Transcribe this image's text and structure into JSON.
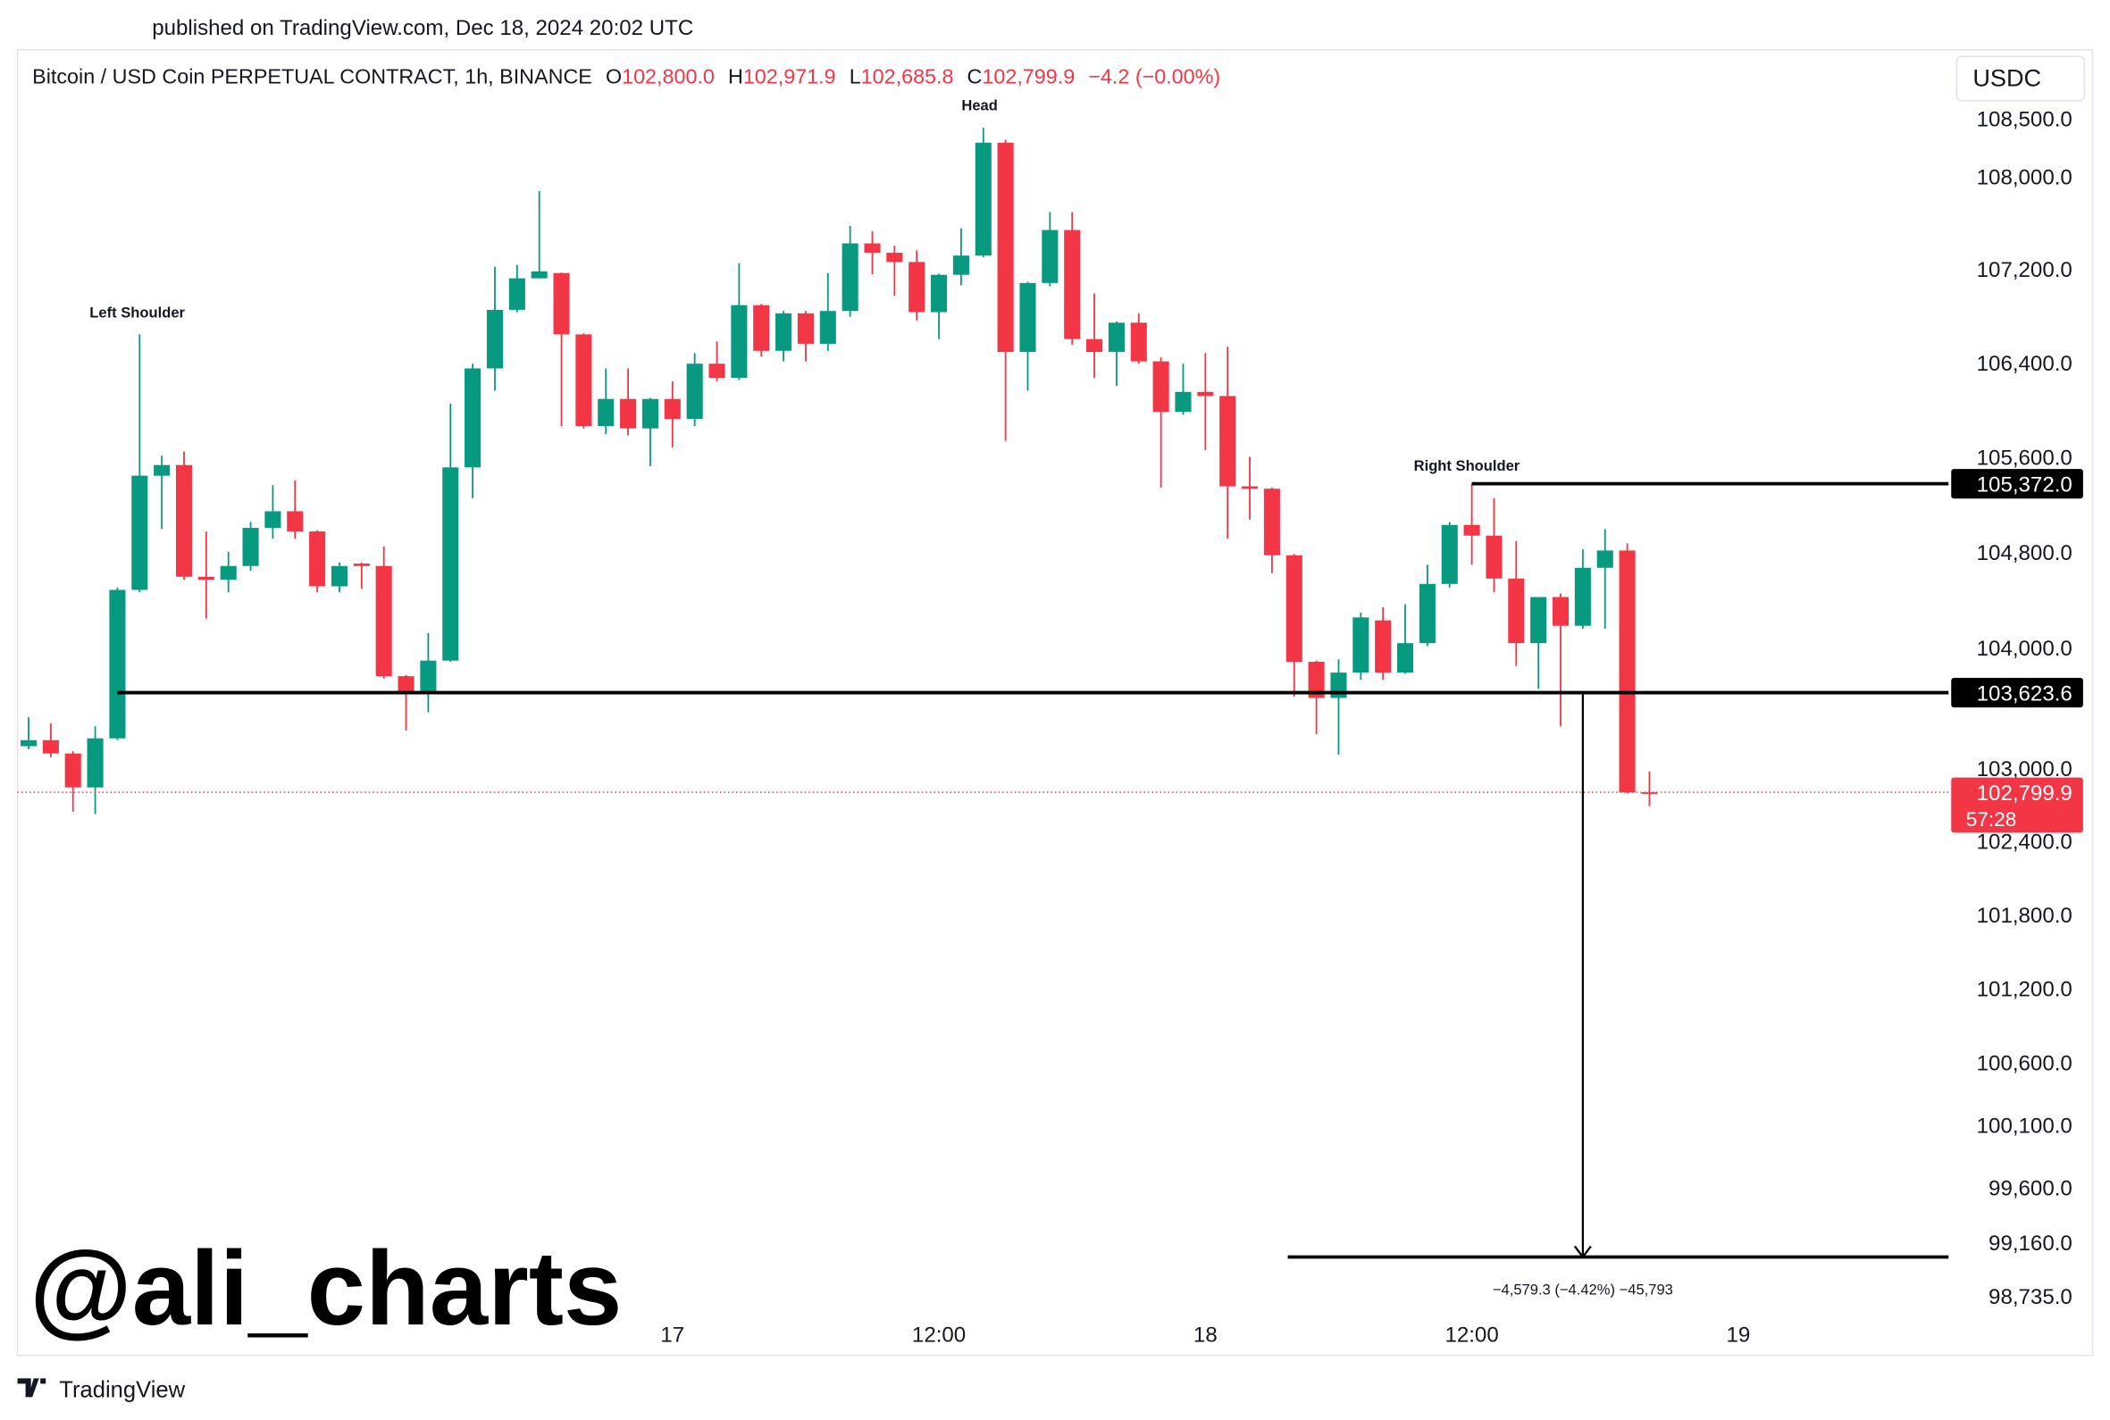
{
  "chart_data": {
    "type": "candlestick",
    "published": "published on TradingView.com, Dec 18, 2024 20:02 UTC",
    "title": "Bitcoin / USD Coin PERPETUAL CONTRACT, 1h, BINANCE",
    "ohlc_legend": [
      {
        "prefix": "O",
        "value": 102800.0,
        "label": "102,800.0"
      },
      {
        "prefix": "H",
        "value": 102971.9,
        "label": "102,971.9"
      },
      {
        "prefix": "L",
        "value": 102685.8,
        "label": "102,685.8"
      },
      {
        "prefix": "C",
        "value": 102799.9,
        "label": "102,799.9"
      }
    ],
    "change_text": "−4.2 (−0.00%)",
    "currency": "USDC",
    "watermark": "@ali_charts",
    "brand": "TradingView",
    "log_scale": true,
    "grid": false,
    "up_color": "#089981",
    "down_color": "#f23645",
    "categories": [
      null,
      null,
      null,
      null,
      null,
      null,
      null,
      null,
      null,
      null,
      null,
      null,
      null,
      null,
      null,
      null,
      null,
      null,
      null,
      null,
      null,
      null,
      null,
      null,
      null,
      null,
      null,
      null,
      null,
      "17",
      null,
      null,
      null,
      null,
      null,
      null,
      null,
      null,
      null,
      null,
      null,
      "12:00",
      null,
      null,
      null,
      null,
      null,
      null,
      null,
      null,
      null,
      null,
      null,
      "18",
      null,
      null,
      null,
      null,
      null,
      null,
      null,
      null,
      null,
      null,
      null,
      "12:00",
      null,
      null,
      null,
      null,
      null,
      null,
      null,
      null,
      null,
      null,
      null,
      "19"
    ],
    "open": [
      103180,
      103230,
      103120,
      102840,
      103245,
      104480,
      105440,
      105530,
      104590,
      104565,
      104680,
      105000,
      105140,
      104970,
      104510,
      104700,
      104680,
      103760,
      103610,
      103890,
      105510,
      106350,
      106850,
      107120,
      107165,
      106640,
      105860,
      106090,
      105840,
      106090,
      105920,
      106390,
      106270,
      106890,
      106500,
      106820,
      106560,
      106840,
      107420,
      107340,
      107260,
      106830,
      107150,
      107315,
      108290,
      106490,
      107080,
      107535,
      106600,
      106490,
      106740,
      106410,
      105980,
      106150,
      106115,
      105350,
      105330,
      104770,
      103880,
      103580,
      103790,
      104225,
      103790,
      104035,
      104530,
      105025,
      104935,
      104575,
      104035,
      104420,
      104180,
      104665,
      104810,
      102800.0,
      null,
      null,
      null,
      null
    ],
    "high": [
      103420,
      103370,
      103140,
      103345,
      104500,
      106640,
      105610,
      105645,
      104970,
      104800,
      105050,
      105360,
      105400,
      104980,
      104710,
      104710,
      104845,
      103770,
      104120,
      106050,
      106390,
      107220,
      107235,
      107870,
      107170,
      106650,
      106350,
      106350,
      106100,
      106240,
      106480,
      106580,
      107250,
      106900,
      106840,
      106840,
      107165,
      107570,
      107525,
      107400,
      107360,
      107160,
      107550,
      108420,
      108315,
      107090,
      107690,
      107690,
      106990,
      106750,
      106820,
      106445,
      106390,
      106480,
      106535,
      105600,
      105340,
      104780,
      103890,
      103900,
      104290,
      104335,
      104360,
      104690,
      105050,
      105370,
      105250,
      104890,
      104420,
      104450,
      104820,
      104990,
      104870,
      102971.9,
      null,
      null,
      null,
      null
    ],
    "low": [
      103155,
      103090,
      102640,
      102620,
      103230,
      104460,
      104990,
      104565,
      104240,
      104460,
      104640,
      104910,
      104910,
      104460,
      104460,
      104490,
      103740,
      103310,
      103460,
      103880,
      105250,
      106160,
      106830,
      107120,
      105860,
      105840,
      105790,
      105780,
      105520,
      105680,
      105860,
      106240,
      106250,
      106450,
      106410,
      106410,
      106500,
      106790,
      107155,
      106970,
      106760,
      106600,
      107060,
      107300,
      105735,
      106160,
      107050,
      106550,
      106270,
      106200,
      106390,
      105340,
      105955,
      105655,
      104910,
      105070,
      104620,
      103590,
      103280,
      103110,
      103730,
      103730,
      103780,
      104010,
      104500,
      104690,
      104460,
      103845,
      103655,
      103345,
      104155,
      104155,
      102790,
      102685.8,
      null,
      null,
      null,
      null
    ],
    "close": [
      103230,
      103120,
      102840,
      103245,
      104480,
      105440,
      105530,
      104590,
      104565,
      104680,
      105000,
      105140,
      104970,
      104510,
      104680,
      104680,
      103760,
      103610,
      103890,
      105510,
      106350,
      106850,
      107120,
      107180,
      106640,
      105860,
      106090,
      105840,
      106090,
      105920,
      106390,
      106270,
      106890,
      106500,
      106820,
      106560,
      106840,
      107420,
      107340,
      107260,
      106830,
      107150,
      107315,
      108290,
      106490,
      107080,
      107535,
      106600,
      106490,
      106740,
      106410,
      105980,
      106150,
      106115,
      105350,
      105330,
      104770,
      103880,
      103580,
      103790,
      104250,
      103790,
      104035,
      104530,
      105025,
      104935,
      104575,
      104035,
      104420,
      104180,
      104665,
      104810,
      102800,
      102799.9,
      null,
      null,
      null,
      null
    ],
    "ylim": [
      98616,
      109099
    ],
    "yticks": [
      {
        "value": 108500,
        "label": "108,500.0"
      },
      {
        "value": 108000,
        "label": "108,000.0"
      },
      {
        "value": 107200,
        "label": "107,200.0"
      },
      {
        "value": 106400,
        "label": "106,400.0"
      },
      {
        "value": 105600,
        "label": "105,600.0"
      },
      {
        "value": 104800,
        "label": "104,800.0"
      },
      {
        "value": 104000,
        "label": "104,000.0"
      },
      {
        "value": 103000,
        "label": "103,000.0"
      },
      {
        "value": 102400,
        "label": "102,400.0"
      },
      {
        "value": 101800,
        "label": "101,800.0"
      },
      {
        "value": 101200,
        "label": "101,200.0"
      },
      {
        "value": 100600,
        "label": "100,600.0"
      },
      {
        "value": 100100,
        "label": "100,100.0"
      },
      {
        "value": 99600,
        "label": "99,600.0"
      },
      {
        "value": 99160,
        "label": "99,160.0"
      },
      {
        "value": 98735,
        "label": "98,735.0"
      }
    ],
    "levels": [
      {
        "value": 105372.0,
        "label": "105,372.0"
      },
      {
        "value": 103623.6,
        "label": "103,623.6"
      }
    ],
    "last_price": {
      "value": 102799.9,
      "label": "102,799.9",
      "countdown": "57:28"
    },
    "measure": {
      "change": -4579.3,
      "label": "−4,579.3 (−4.42%) −45,793"
    },
    "annotations": [
      "Left Shoulder",
      "Head",
      "Right Shoulder"
    ]
  }
}
